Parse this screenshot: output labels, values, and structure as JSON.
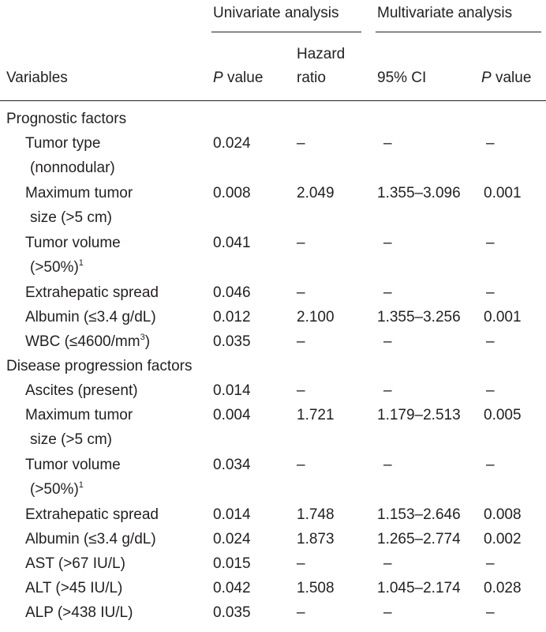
{
  "header": {
    "univariate": "Univariate analysis",
    "multivariate": "Multivariate analysis",
    "variables": "Variables",
    "p_value_italic": "P",
    "p_value_rest": " value",
    "hazard_line1": "Hazard",
    "hazard_line2": "ratio",
    "ci": "95% CI",
    "p2_italic": "P",
    "p2_rest": " value"
  },
  "sections": [
    {
      "title": "Prognostic factors",
      "rows": [
        {
          "label": [
            "Tumor type",
            "(nonnodular)"
          ],
          "sup": "",
          "p": "0.024",
          "hr": "–",
          "ci": "–",
          "p2": "–"
        },
        {
          "label": [
            "Maximum tumor",
            "size (>5 cm)"
          ],
          "sup": "",
          "p": "0.008",
          "hr": "2.049",
          "ci": "1.355–3.096",
          "p2": "0.001"
        },
        {
          "label": [
            "Tumor volume",
            "(>50%)"
          ],
          "sup": "1",
          "p": "0.041",
          "hr": "–",
          "ci": "–",
          "p2": "–"
        },
        {
          "label": [
            "Extrahepatic spread"
          ],
          "sup": "",
          "p": "0.046",
          "hr": "–",
          "ci": "–",
          "p2": "–"
        },
        {
          "label": [
            "Albumin (≤3.4 g/dL)"
          ],
          "sup": "",
          "p": "0.012",
          "hr": "2.100",
          "ci": "1.355–3.256",
          "p2": "0.001"
        },
        {
          "label": [
            "WBC (≤4600/mm"
          ],
          "sup": "3",
          "label_tail": ")",
          "p": "0.035",
          "hr": "–",
          "ci": "–",
          "p2": "–"
        }
      ]
    },
    {
      "title": "Disease progression factors",
      "rows": [
        {
          "label": [
            "Ascites (present)"
          ],
          "sup": "",
          "p": "0.014",
          "hr": "–",
          "ci": "–",
          "p2": "–"
        },
        {
          "label": [
            "Maximum tumor",
            "size (>5 cm)"
          ],
          "sup": "",
          "p": "0.004",
          "hr": "1.721",
          "ci": "1.179–2.513",
          "p2": "0.005"
        },
        {
          "label": [
            "Tumor volume",
            "(>50%)"
          ],
          "sup": "1",
          "p": "0.034",
          "hr": "–",
          "ci": "–",
          "p2": "–"
        },
        {
          "label": [
            "Extrahepatic spread"
          ],
          "sup": "",
          "p": "0.014",
          "hr": "1.748",
          "ci": "1.153–2.646",
          "p2": "0.008"
        },
        {
          "label": [
            "Albumin (≤3.4 g/dL)"
          ],
          "sup": "",
          "p": "0.024",
          "hr": "1.873",
          "ci": "1.265–2.774",
          "p2": "0.002"
        },
        {
          "label": [
            "AST (>67 IU/L)"
          ],
          "sup": "",
          "p": "0.015",
          "hr": "–",
          "ci": "–",
          "p2": "–"
        },
        {
          "label": [
            "ALT (>45 IU/L)"
          ],
          "sup": "",
          "p": "0.042",
          "hr": "1.508",
          "ci": "1.045–2.174",
          "p2": "0.028"
        },
        {
          "label": [
            "ALP (>438 IU/L)"
          ],
          "sup": "",
          "p": "0.035",
          "hr": "–",
          "ci": "–",
          "p2": "–"
        }
      ]
    }
  ]
}
